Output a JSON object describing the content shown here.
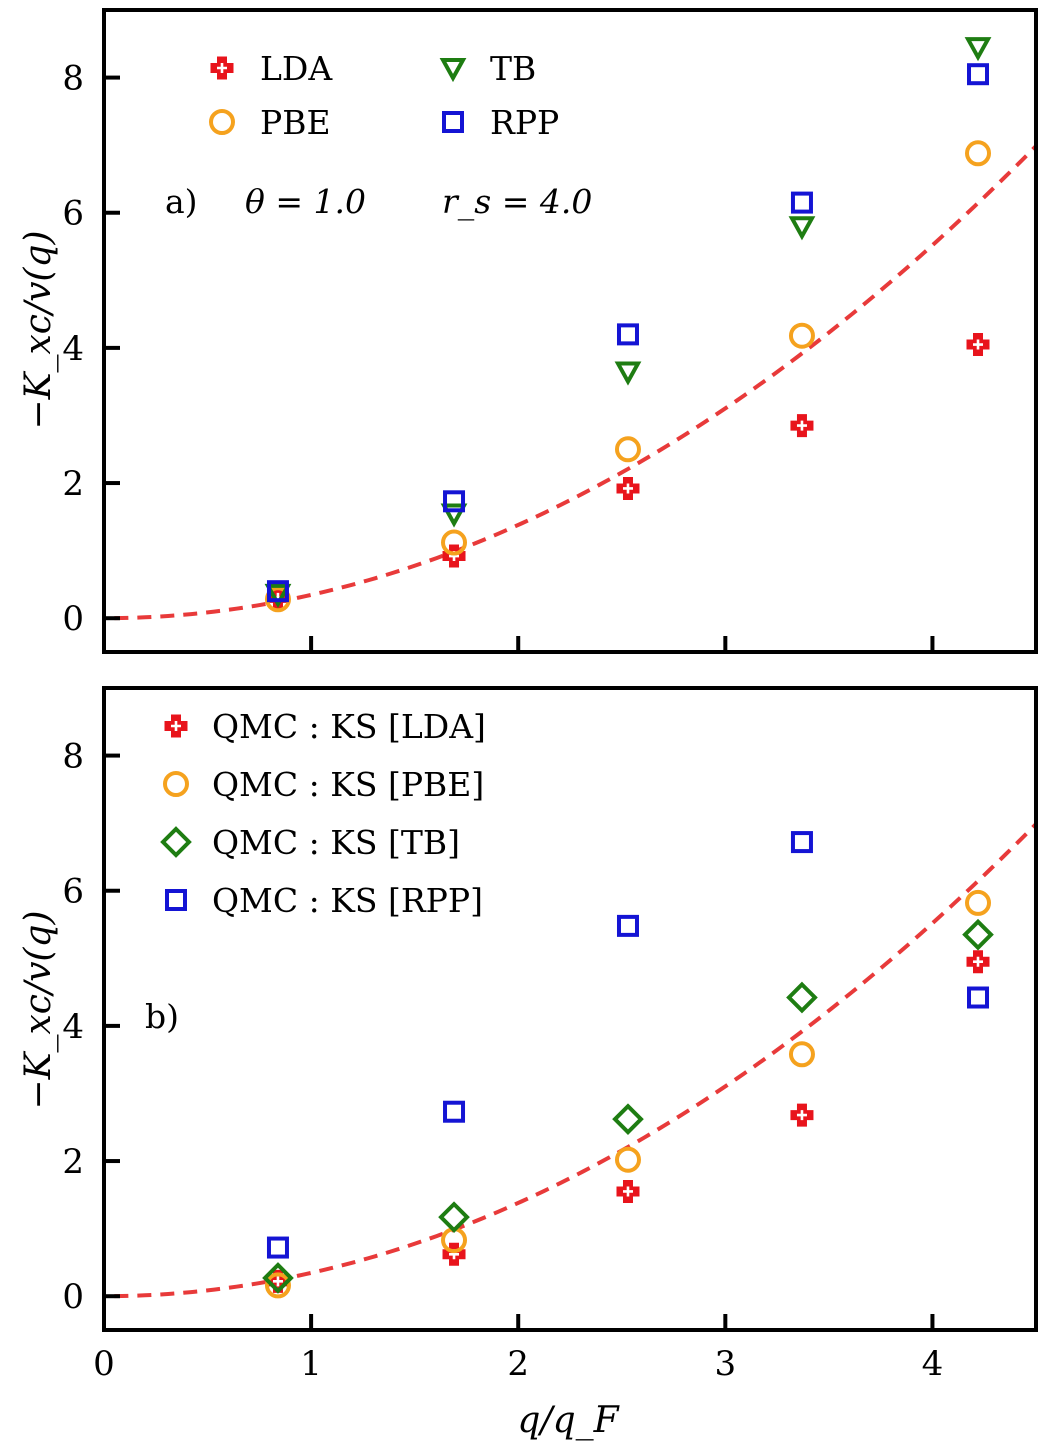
{
  "chart_data": [
    {
      "type": "scatter",
      "panel": "a",
      "xlim": [
        0,
        4.5
      ],
      "ylim": [
        -0.5,
        9.0
      ],
      "x_ticks": [
        0,
        1,
        2,
        3,
        4
      ],
      "y_ticks": [
        "0",
        "2",
        "4",
        "6",
        "8"
      ],
      "y_tick_values": [
        0,
        2,
        4,
        6,
        8
      ],
      "ylabel": "−K_xc/v(q)",
      "annotation": {
        "label": "a)",
        "theta": "θ = 1.0",
        "rs": "r_s = 4.0"
      },
      "legend": [
        {
          "name": "LDA",
          "marker": "plus",
          "color": "#e8141c"
        },
        {
          "name": "PBE",
          "marker": "circle",
          "color": "#f5a21e"
        },
        {
          "name": "TB",
          "marker": "triangle-down",
          "color": "#1e7d12"
        },
        {
          "name": "RPP",
          "marker": "square",
          "color": "#1414d4"
        }
      ],
      "x": [
        0.84,
        1.69,
        2.53,
        3.37,
        4.22
      ],
      "series": [
        {
          "name": "LDA",
          "marker": "plus",
          "color": "#e8141c",
          "values": [
            0.3,
            0.92,
            1.92,
            2.85,
            4.05
          ]
        },
        {
          "name": "PBE",
          "marker": "circle",
          "color": "#f5a21e",
          "values": [
            0.28,
            1.12,
            2.5,
            4.18,
            6.88
          ]
        },
        {
          "name": "TB",
          "marker": "triangle-down",
          "color": "#1e7d12",
          "values": [
            0.36,
            1.55,
            3.65,
            5.8,
            8.45
          ]
        },
        {
          "name": "RPP",
          "marker": "square",
          "color": "#1414d4",
          "values": [
            0.4,
            1.73,
            4.2,
            6.15,
            8.05
          ]
        }
      ],
      "fit_curve": {
        "color": "#e83a3a",
        "style": "dashed",
        "coefficient": 0.345,
        "exponent": 2
      }
    },
    {
      "type": "scatter",
      "panel": "b",
      "xlim": [
        0,
        4.5
      ],
      "ylim": [
        -0.5,
        9.0
      ],
      "x_ticks": [
        0,
        1,
        2,
        3,
        4
      ],
      "x_tick_labels": [
        "0",
        "1",
        "2",
        "3",
        "4"
      ],
      "y_ticks": [
        "0",
        "2",
        "4",
        "6",
        "8"
      ],
      "y_tick_values": [
        0,
        2,
        4,
        6,
        8
      ],
      "xlabel": "q/q_F",
      "ylabel": "−K_xc/v(q)",
      "annotation": {
        "label": "b)"
      },
      "legend": [
        {
          "name": "QMC : KS [LDA]",
          "marker": "plus",
          "color": "#e8141c"
        },
        {
          "name": "QMC : KS [PBE]",
          "marker": "circle",
          "color": "#f5a21e"
        },
        {
          "name": "QMC : KS [TB]",
          "marker": "diamond",
          "color": "#1e7d12"
        },
        {
          "name": "QMC : KS [RPP]",
          "marker": "square",
          "color": "#1414d4"
        }
      ],
      "x": [
        0.84,
        1.69,
        2.53,
        3.37,
        4.22
      ],
      "series": [
        {
          "name": "QMC : KS [LDA]",
          "marker": "plus",
          "color": "#e8141c",
          "values": [
            0.22,
            0.62,
            1.55,
            2.68,
            4.95
          ]
        },
        {
          "name": "QMC : KS [PBE]",
          "marker": "circle",
          "color": "#f5a21e",
          "values": [
            0.16,
            0.83,
            2.02,
            3.58,
            5.82
          ]
        },
        {
          "name": "QMC : KS [TB]",
          "marker": "diamond",
          "color": "#1e7d12",
          "values": [
            0.27,
            1.17,
            2.62,
            4.42,
            5.35
          ]
        },
        {
          "name": "QMC : KS [RPP]",
          "marker": "square",
          "color": "#1414d4",
          "values": [
            0.72,
            2.73,
            5.48,
            6.72,
            4.42
          ]
        }
      ],
      "fit_curve": {
        "color": "#e83a3a",
        "style": "dashed",
        "coefficient": 0.345,
        "exponent": 2
      }
    }
  ]
}
